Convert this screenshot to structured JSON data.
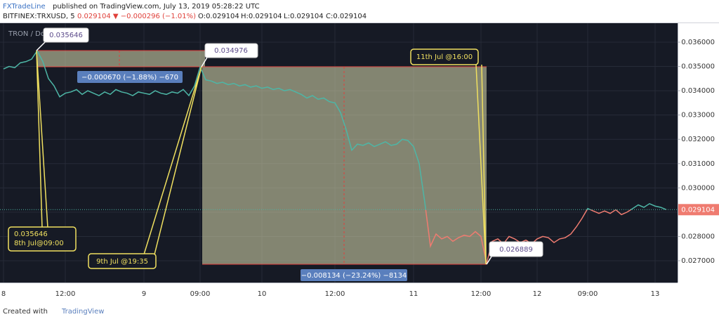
{
  "chart_data": {
    "type": "line",
    "publisher": "FXTradeLine",
    "title": "published on TradingView.com, July 13, 2019 05:28:22 UTC",
    "symbol": "BITFINEX:TRXUSD, 5",
    "change": "0.029104 ▼ −0.000296 (−1.01%)",
    "ohlc": [
      "O:0.029104",
      "H:0.029104",
      "L:0.029104",
      "C:0.029104"
    ],
    "legend": "TRON / Do",
    "footer": [
      "Created with",
      "TradingView"
    ],
    "categories": [
      "8",
      null,
      null,
      null,
      null,
      null,
      null,
      null,
      null,
      null,
      null,
      "12:00",
      null,
      null,
      null,
      null,
      null,
      null,
      null,
      null,
      null,
      null,
      null,
      null,
      null,
      "9",
      null,
      null,
      null,
      null,
      null,
      null,
      null,
      null,
      null,
      "09:00",
      null,
      null,
      null,
      null,
      null,
      null,
      null,
      null,
      null,
      null,
      "10",
      null,
      null,
      null,
      null,
      null,
      null,
      null,
      null,
      null,
      null,
      null,
      null,
      "12:00",
      null,
      null,
      null,
      null,
      null,
      null,
      null,
      null,
      null,
      null,
      null,
      null,
      null,
      "11",
      null,
      null,
      null,
      null,
      null,
      null,
      null,
      null,
      null,
      null,
      null,
      "12:00",
      null,
      null,
      null,
      null,
      null,
      null,
      null,
      null,
      null,
      "12",
      null,
      null,
      null,
      null,
      null,
      null,
      null,
      null,
      "09:00",
      null,
      null,
      null,
      null,
      null,
      null,
      null,
      null,
      null,
      null,
      null,
      "13",
      null,
      null
    ],
    "series": [
      {
        "color": "#4db6a6",
        "below_color": "#ef7b70",
        "values": [
          0.0349,
          0.035,
          0.03495,
          0.03515,
          0.0352,
          0.0353,
          0.035646,
          0.0352,
          0.0345,
          0.0342,
          0.03375,
          0.0339,
          0.03395,
          0.03405,
          0.03385,
          0.034,
          0.0339,
          0.0338,
          0.03395,
          0.03385,
          0.03405,
          0.03395,
          0.0339,
          0.0338,
          0.03395,
          0.0339,
          0.03385,
          0.034,
          0.0339,
          0.03385,
          0.03395,
          0.0339,
          0.03405,
          0.0338,
          0.0342,
          0.034976,
          0.03445,
          0.0344,
          0.0343,
          0.03435,
          0.03425,
          0.0343,
          0.0342,
          0.03425,
          0.03415,
          0.0342,
          0.0341,
          0.03415,
          0.03405,
          0.0341,
          0.034,
          0.03405,
          0.03395,
          0.03385,
          0.0337,
          0.0338,
          0.03365,
          0.0337,
          0.03355,
          0.0335,
          0.0331,
          0.0324,
          0.03155,
          0.0318,
          0.03175,
          0.03185,
          0.0317,
          0.0318,
          0.0319,
          0.03175,
          0.0318,
          0.032,
          0.03195,
          0.0317,
          0.031,
          0.0294,
          0.0276,
          0.0281,
          0.0279,
          0.028,
          0.0278,
          0.02795,
          0.02805,
          0.028,
          0.0282,
          0.028,
          0.026889,
          0.0278,
          0.0279,
          0.0277,
          0.028,
          0.0279,
          0.02775,
          0.02785,
          0.0277,
          0.0279,
          0.028,
          0.02795,
          0.02775,
          0.0279,
          0.02795,
          0.0281,
          0.0284,
          0.02875,
          0.02915,
          0.02905,
          0.02895,
          0.02905,
          0.02895,
          0.0291,
          0.0289,
          0.029,
          0.02915,
          0.0293,
          0.0292,
          0.02935,
          0.02925,
          0.0292,
          0.029104
        ]
      }
    ],
    "last_price": 0.029104,
    "ylim": [
      0.026103,
      0.036781
    ],
    "yticks": [
      {
        "value": 0.027,
        "label": "0.027000"
      },
      {
        "value": 0.028,
        "label": "0.028000"
      },
      {
        "value": 0.029,
        "label": "0.029000"
      },
      {
        "value": 0.03,
        "label": "0.030000"
      },
      {
        "value": 0.031,
        "label": "0.031000"
      },
      {
        "value": 0.032,
        "label": "0.032000"
      },
      {
        "value": 0.033,
        "label": "0.033000"
      },
      {
        "value": 0.034,
        "label": "0.034000"
      },
      {
        "value": 0.035,
        "label": "0.035000"
      },
      {
        "value": 0.036,
        "label": "0.036000"
      }
    ],
    "grid": true,
    "annotations": [
      "0.035646",
      "0.034976",
      "11th Jul @16:00",
      "−0.000670 (−1.88%) −670",
      "0.035646",
      "8th Jul@09:00",
      "9th Jul @19:35",
      "−0.008134 (−23.24%) −8134",
      "0.026889"
    ]
  }
}
